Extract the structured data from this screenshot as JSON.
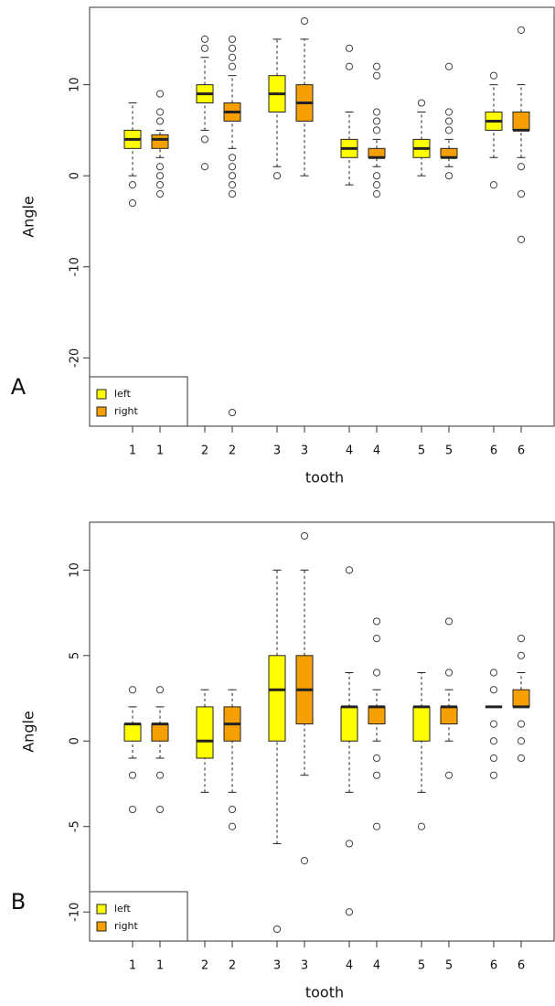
{
  "chart_data": [
    {
      "type": "box",
      "panel_label": "A",
      "y_label": "Angle",
      "x_label": "tooth",
      "categories": [
        "1",
        "2",
        "3",
        "4",
        "5",
        "6"
      ],
      "ylim": [
        -27.5,
        18.5
      ],
      "yticks": [
        -20,
        -10,
        0,
        10
      ],
      "legend": "bottom-left",
      "series": [
        {
          "name": "left",
          "color": "#ffff00",
          "min": [
            0,
            5,
            1,
            -1,
            0,
            2
          ],
          "q1": [
            3,
            8,
            7,
            2,
            2,
            5
          ],
          "median": [
            4,
            9,
            9,
            3,
            3,
            6
          ],
          "q3": [
            5,
            10,
            11,
            4,
            4,
            7
          ],
          "max": [
            8,
            13,
            15,
            7,
            7,
            10
          ],
          "outliers": [
            [
              -1,
              -3
            ],
            [
              15,
              14,
              4,
              1
            ],
            [
              0
            ],
            [
              12,
              14
            ],
            [
              8
            ],
            [
              11,
              -1
            ]
          ]
        },
        {
          "name": "right",
          "color": "#f5a000",
          "min": [
            2,
            3,
            0,
            1,
            1,
            2
          ],
          "q1": [
            3,
            6,
            6,
            2,
            2,
            5
          ],
          "median": [
            4,
            7,
            8,
            2,
            2,
            5
          ],
          "q3": [
            4.5,
            8,
            10,
            3,
            3,
            7
          ],
          "max": [
            5,
            11,
            15,
            4,
            4,
            10
          ],
          "outliers": [
            [
              6,
              7,
              9,
              1,
              0,
              -1,
              -2
            ],
            [
              15,
              14,
              13,
              12,
              2,
              1,
              0,
              -1,
              -2,
              -26
            ],
            [
              17
            ],
            [
              12,
              11,
              7,
              6,
              5,
              0,
              -1,
              -2
            ],
            [
              12,
              7,
              6,
              5,
              0
            ],
            [
              16,
              1,
              -2,
              -7
            ]
          ]
        }
      ]
    },
    {
      "type": "box",
      "panel_label": "B",
      "y_label": "Angle",
      "x_label": "tooth",
      "categories": [
        "1",
        "2",
        "3",
        "4",
        "5",
        "6"
      ],
      "ylim": [
        -11.7,
        12.8
      ],
      "yticks": [
        -10,
        -5,
        0,
        5,
        10
      ],
      "legend": "bottom-left",
      "series": [
        {
          "name": "left",
          "color": "#ffff00",
          "min": [
            -1,
            -3,
            -6,
            -3,
            -3,
            2
          ],
          "q1": [
            0,
            -1,
            0,
            0,
            0,
            2
          ],
          "median": [
            1,
            0,
            3,
            2,
            2,
            2
          ],
          "q3": [
            1,
            2,
            5,
            2,
            2,
            2
          ],
          "max": [
            2,
            3,
            10,
            4,
            4,
            2
          ],
          "outliers": [
            [
              3,
              -2,
              -4
            ],
            [],
            [
              -11
            ],
            [
              10,
              -6,
              -10
            ],
            [
              -5
            ],
            [
              4,
              3,
              1,
              0,
              -1,
              -2
            ]
          ]
        },
        {
          "name": "right",
          "color": "#f5a000",
          "min": [
            -1,
            -3,
            -2,
            0,
            0,
            2
          ],
          "q1": [
            0,
            0,
            1,
            1,
            1,
            2
          ],
          "median": [
            1,
            1,
            3,
            2,
            2,
            2
          ],
          "q3": [
            1,
            2,
            5,
            2,
            2,
            3
          ],
          "max": [
            2,
            3,
            10,
            3,
            3,
            4
          ],
          "outliers": [
            [
              3,
              -2,
              -4
            ],
            [
              -4,
              -5
            ],
            [
              12,
              -7
            ],
            [
              4,
              6,
              7,
              -1,
              -2,
              -5
            ],
            [
              4,
              7,
              -2
            ],
            [
              5,
              6,
              1,
              0,
              -1
            ]
          ]
        }
      ]
    }
  ]
}
